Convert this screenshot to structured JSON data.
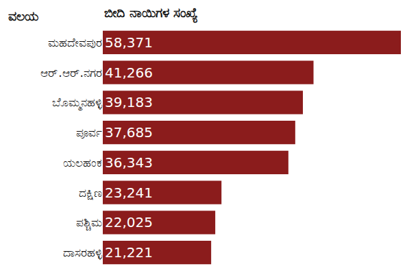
{
  "chart_data": {
    "type": "bar",
    "orientation": "horizontal",
    "y_label": "ವಲಯ",
    "x_label": "ಬೀದಿ ನಾಯಿಗಳ ಸಂಖ್ಯೆ",
    "categories": [
      "ಮಹದೇವಪುರ",
      "ಆರ್.ಆರ್.ನಗರ",
      "ಬೊಮ್ಮನಹಳ್ಳಿ",
      "ಪೂರ್ವ",
      "ಯಲಹಂಕ",
      "ದಕ್ಷಿಣ",
      "ಪಶ್ಚಿಮ",
      "ದಾಸರಹಳ್ಳಿ"
    ],
    "values": [
      58371,
      41266,
      39183,
      37685,
      36343,
      23241,
      22025,
      21221
    ],
    "value_labels": [
      "58,371",
      "41,266",
      "39,183",
      "37,685",
      "36,343",
      "23,241",
      "22,025",
      "21,221"
    ],
    "color": "#8b1c1c",
    "data_labels": true,
    "tick_labels": "y",
    "grid": false
  }
}
